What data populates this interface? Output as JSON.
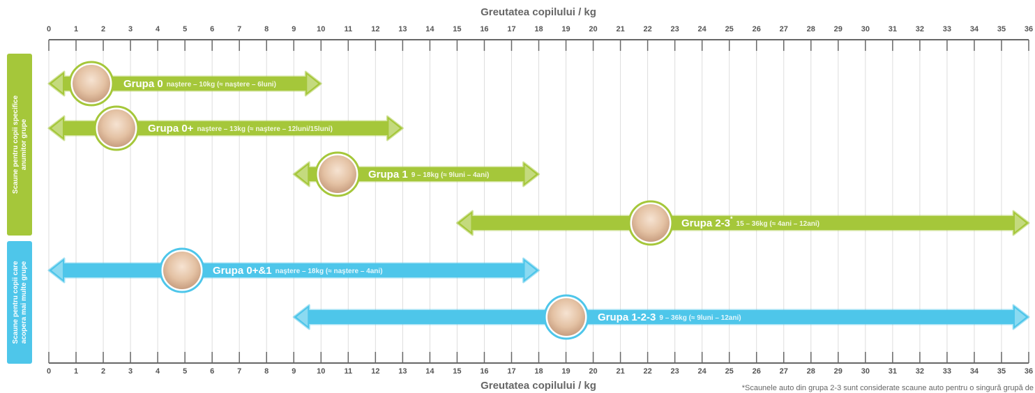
{
  "chart_data": {
    "type": "range",
    "title": "Greutatea copilului / kg",
    "xlim": [
      0,
      36
    ],
    "xticks": [
      0,
      1,
      2,
      3,
      4,
      5,
      6,
      7,
      8,
      9,
      10,
      11,
      12,
      13,
      14,
      15,
      16,
      17,
      18,
      19,
      20,
      21,
      22,
      23,
      24,
      25,
      26,
      27,
      28,
      29,
      30,
      31,
      32,
      33,
      34,
      35,
      36
    ],
    "grid": true,
    "groups": [
      {
        "label": "Scaune pentru copii specifice anumitor grupe",
        "color": "#a5c73a"
      },
      {
        "label": "Scaune pentru copii care acopera mai multe grupe",
        "color": "#4ec6ea"
      }
    ],
    "series": [
      {
        "name": "Grupa 0",
        "detail": "naştere – 10kg (≈ naştere – 6luni)",
        "start": 0,
        "end": 10,
        "color": "#a5c73a"
      },
      {
        "name": "Grupa 0+",
        "detail": "naştere – 13kg (≈ naştere – 12luni/15luni)",
        "start": 0,
        "end": 13,
        "color": "#a5c73a"
      },
      {
        "name": "Grupa 1",
        "detail": "9 – 18kg (≈ 9luni – 4ani)",
        "start": 9,
        "end": 18,
        "color": "#a5c73a"
      },
      {
        "name": "Grupa 2-3",
        "marker": "*",
        "detail": "15 – 36kg (≈ 4ani – 12ani)",
        "start": 15,
        "end": 36,
        "color": "#a5c73a"
      },
      {
        "name": "Grupa 0+&1",
        "detail": "naştere – 18kg (≈ naştere – 4ani)",
        "start": 0,
        "end": 18,
        "color": "#4ec6ea"
      },
      {
        "name": "Grupa 1-2-3",
        "detail": "9 – 36kg (≈ 9luni – 12ani)",
        "start": 9,
        "end": 36,
        "color": "#4ec6ea"
      }
    ],
    "footnote": "*Scaunele auto din grupa 2-3 sunt considerate scaune auto pentru o singură grupă de"
  }
}
